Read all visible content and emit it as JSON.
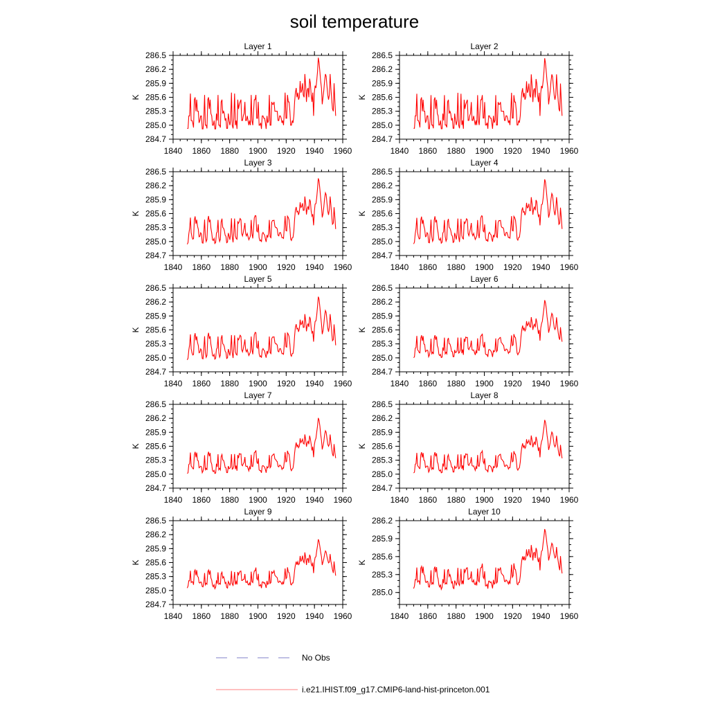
{
  "title": "soil temperature",
  "colors": {
    "series": "#ff0000",
    "obs": "#8080c8",
    "axis": "#000000"
  },
  "legend": [
    {
      "label": "No Obs",
      "style": "dashed",
      "color": "#8080c8"
    },
    {
      "label": "i.e21.IHIST.f09_g17.CMIP6-land-hist-princeton.001",
      "style": "solid",
      "color": "#ff8080"
    }
  ],
  "chart_data": {
    "type": "line",
    "xlabel": "",
    "ylabel": "K",
    "xlim": [
      1840,
      1960
    ],
    "xticks": [
      1840,
      1860,
      1880,
      1900,
      1920,
      1940,
      1960
    ],
    "x_start": 1850,
    "grid": false,
    "legend_position": "bottom",
    "base_series": [
      284.93,
      284.93,
      285.2,
      285.2,
      285.68,
      285.1,
      285.1,
      285.05,
      284.95,
      285.55,
      285.6,
      285.3,
      285.55,
      285.3,
      285.3,
      285.05,
      285.1,
      285.2,
      285.2,
      284.92,
      284.92,
      285.15,
      285.65,
      285.0,
      285.0,
      284.93,
      285.55,
      285.6,
      285.35,
      285.55,
      285.25,
      285.2,
      285.0,
      285.0,
      285.1,
      284.92,
      284.92,
      285.25,
      285.1,
      285.65,
      285.0,
      285.0,
      284.95,
      285.5,
      285.55,
      285.25,
      285.3,
      285.25,
      285.1,
      285.15,
      284.93,
      284.93,
      285.25,
      285.1,
      285.0,
      285.1,
      285.7,
      285.0,
      284.93,
      285.15,
      285.68,
      285.0,
      285.1,
      284.92,
      285.55,
      285.35,
      285.45,
      285.5,
      285.55,
      285.1,
      285.1,
      285.2,
      285.25,
      285.5,
      285.1,
      285.1,
      285.2,
      285.1,
      285.0,
      285.1,
      285.0,
      285.65,
      285.1,
      285.0,
      285.3,
      285.55,
      285.55,
      285.65,
      285.15,
      285.15,
      285.5,
      285.0,
      285.0,
      285.05,
      284.92,
      285.2,
      285.2,
      285.15,
      285.15,
      285.05,
      284.92,
      285.2,
      285.05,
      285.1,
      285.65,
      285.0,
      285.0,
      285.5,
      285.45,
      285.45,
      285.5,
      285.3,
      285.3,
      285.3,
      285.3,
      285.1,
      285.1,
      285.2,
      285.2,
      285.15,
      285.05,
      285.1,
      285.0,
      285.3,
      285.7,
      285.15,
      285.15,
      285.65,
      285.5,
      285.5,
      285.3,
      285.0,
      285.0,
      285.1,
      285.05,
      285.2,
      285.5,
      285.7,
      285.8,
      285.6,
      285.7,
      285.55,
      285.6,
      285.95,
      285.7,
      285.75,
      285.9,
      285.65,
      285.6,
      286.1,
      285.85,
      285.5,
      285.75,
      285.8,
      285.6,
      286.0,
      285.9,
      285.65,
      285.5,
      285.7,
      285.2,
      285.7,
      285.85,
      285.8,
      285.95,
      286.15,
      286.45,
      286.35,
      286.15,
      285.95,
      285.8,
      285.45,
      285.6,
      285.75,
      285.95,
      286.1,
      286.05,
      285.85,
      285.65,
      285.55,
      285.65,
      286.1,
      285.8,
      285.55,
      285.35,
      285.3,
      285.9,
      285.5,
      285.2
    ],
    "panels": [
      {
        "title": "Layer 1",
        "ylim": [
          284.7,
          286.5
        ],
        "yticks": [
          "284.7",
          "285.0",
          "285.3",
          "285.6",
          "285.9",
          "286.2",
          "286.5"
        ],
        "smooth": 0,
        "damp": 1.0,
        "offset": 0.0
      },
      {
        "title": "Layer 2",
        "ylim": [
          284.7,
          286.5
        ],
        "yticks": [
          "284.7",
          "285.0",
          "285.3",
          "285.6",
          "285.9",
          "286.2",
          "286.5"
        ],
        "smooth": 0,
        "damp": 0.99,
        "offset": 0.0
      },
      {
        "title": "Layer 3",
        "ylim": [
          284.7,
          286.5
        ],
        "yticks": [
          "284.7",
          "285.0",
          "285.3",
          "285.6",
          "285.9",
          "286.2",
          "286.5"
        ],
        "smooth": 1,
        "damp": 0.97,
        "offset": 0.0
      },
      {
        "title": "Layer 4",
        "ylim": [
          284.7,
          286.5
        ],
        "yticks": [
          "284.7",
          "285.0",
          "285.3",
          "285.6",
          "285.9",
          "286.2",
          "286.5"
        ],
        "smooth": 1,
        "damp": 0.95,
        "offset": 0.0
      },
      {
        "title": "Layer 5",
        "ylim": [
          284.7,
          286.5
        ],
        "yticks": [
          "284.7",
          "285.0",
          "285.3",
          "285.6",
          "285.9",
          "286.2",
          "286.5"
        ],
        "smooth": 1,
        "damp": 0.93,
        "offset": 0.0
      },
      {
        "title": "Layer 6",
        "ylim": [
          284.7,
          286.5
        ],
        "yticks": [
          "284.7",
          "285.0",
          "285.3",
          "285.6",
          "285.9",
          "286.2",
          "286.5"
        ],
        "smooth": 2,
        "damp": 0.9,
        "offset": 0.0
      },
      {
        "title": "Layer 7",
        "ylim": [
          284.7,
          286.5
        ],
        "yticks": [
          "284.7",
          "285.0",
          "285.3",
          "285.6",
          "285.9",
          "286.2",
          "286.5"
        ],
        "smooth": 2,
        "damp": 0.87,
        "offset": 0.0
      },
      {
        "title": "Layer 8",
        "ylim": [
          284.7,
          286.5
        ],
        "yticks": [
          "284.7",
          "285.0",
          "285.3",
          "285.6",
          "285.9",
          "286.2",
          "286.5"
        ],
        "smooth": 2,
        "damp": 0.83,
        "offset": 0.0
      },
      {
        "title": "Layer 9",
        "ylim": [
          284.7,
          286.5
        ],
        "yticks": [
          "284.7",
          "285.0",
          "285.3",
          "285.6",
          "285.9",
          "286.2",
          "286.5"
        ],
        "smooth": 3,
        "damp": 0.8,
        "offset": 0.0
      },
      {
        "title": "Layer 10",
        "ylim": [
          284.8,
          286.2
        ],
        "yticks": [
          "285.0",
          "285.3",
          "285.6",
          "285.9",
          "286.2"
        ],
        "smooth": 3,
        "damp": 0.76,
        "offset": 0.0
      }
    ]
  }
}
